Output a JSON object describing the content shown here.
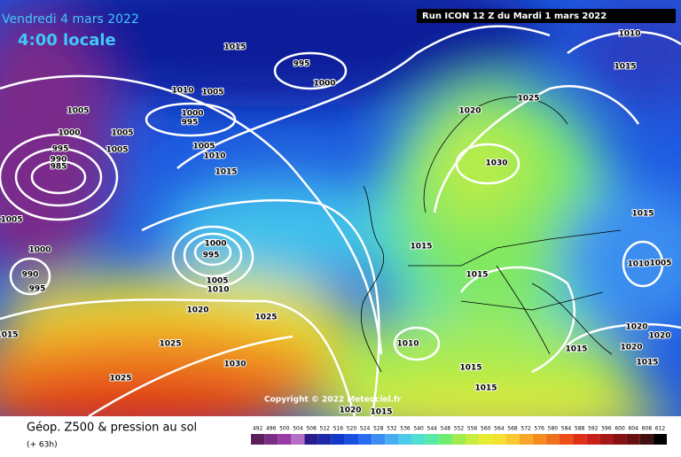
{
  "header": {
    "date": "Vendredi 4 mars 2022",
    "time": "4:00 locale",
    "run": "Run ICON 12 Z du Mardi 1 mars 2022"
  },
  "map": {
    "isobar_labels": [
      "1015",
      "995",
      "1000",
      "1010",
      "1005",
      "1005",
      "1000",
      "995",
      "1000",
      "1005",
      "995",
      "990",
      "985",
      "1005",
      "1005",
      "1010",
      "1015",
      "1005",
      "1000",
      "990",
      "995",
      "1000",
      "995",
      "1005",
      "1010",
      "1020",
      "1025",
      "1015",
      "1025",
      "1030",
      "1025",
      "1020",
      "1025",
      "1030",
      "1015",
      "1015",
      "1010",
      "1015",
      "1015",
      "1010",
      "1005",
      "1020",
      "1020",
      "1015",
      "1020",
      "1015",
      "1010",
      "1015",
      "1015",
      "1020",
      "1015"
    ]
  },
  "copyright": "Copyright © 2022 Meteociel.fr",
  "footer": {
    "title": "Géop. Z500 & pression au sol",
    "lead": "(+ 63h)"
  },
  "colorbar": {
    "labels": [
      492,
      496,
      500,
      504,
      508,
      512,
      516,
      520,
      524,
      528,
      532,
      536,
      540,
      544,
      548,
      552,
      556,
      560,
      564,
      568,
      572,
      576,
      580,
      584,
      588,
      592,
      596,
      600,
      604,
      608,
      612
    ],
    "colors": [
      "#5b1f5b",
      "#7a2f86",
      "#9a3aa6",
      "#b56fc4",
      "#2a1c8c",
      "#1a2aa8",
      "#1238c8",
      "#1a50e0",
      "#2a6cf0",
      "#3c8cf4",
      "#48aef4",
      "#4ccce8",
      "#50e0d0",
      "#58e8a8",
      "#70ec70",
      "#a0ec50",
      "#c8ec40",
      "#e8ec30",
      "#f4e030",
      "#f8c830",
      "#f8a828",
      "#f48c20",
      "#f07020",
      "#ec5018",
      "#e03018",
      "#c82018",
      "#a81818",
      "#881010",
      "#681010",
      "#401010",
      "#000000"
    ]
  }
}
